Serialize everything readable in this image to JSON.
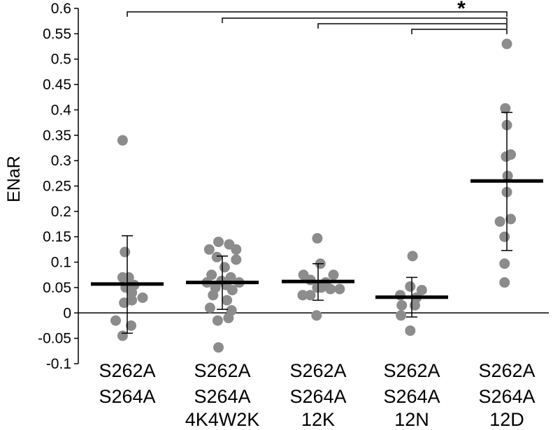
{
  "chart_data": {
    "type": "scatter",
    "title": "",
    "ylabel": "ENaR",
    "xlabel": "",
    "ylim": [
      -0.1,
      0.6
    ],
    "yticks": [
      "0.6",
      "0.55",
      "0.5",
      "0.45",
      "0.4",
      "0.35",
      "0.3",
      "0.25",
      "0.2",
      "0.15",
      "0.1",
      "0.05",
      "0",
      "-0.05",
      "-0.1"
    ],
    "ytick_values": [
      0.6,
      0.55,
      0.5,
      0.45,
      0.4,
      0.35,
      0.3,
      0.25,
      0.2,
      0.15,
      0.1,
      0.05,
      0,
      -0.05,
      -0.1
    ],
    "grid": false,
    "categories": [
      {
        "lines": [
          "S262A",
          "S264A"
        ]
      },
      {
        "lines": [
          "S262A",
          "S264A",
          "4K4W2K"
        ]
      },
      {
        "lines": [
          "S262A",
          "S264A",
          "12K"
        ]
      },
      {
        "lines": [
          "S262A",
          "S264A",
          "12N"
        ]
      },
      {
        "lines": [
          "S262A",
          "S264A",
          "12D"
        ]
      }
    ],
    "groups": [
      {
        "points": [
          [
            -0.06,
            0.34
          ],
          [
            -0.03,
            0.12
          ],
          [
            -0.06,
            0.07
          ],
          [
            0.02,
            0.07
          ],
          [
            0.09,
            0.055
          ],
          [
            -0.02,
            0.05
          ],
          [
            0.06,
            0.04
          ],
          [
            0.2,
            0.03
          ],
          [
            0.06,
            0.025
          ],
          [
            -0.04,
            0.02
          ],
          [
            -0.15,
            -0.015
          ],
          [
            0.05,
            -0.025
          ],
          [
            -0.06,
            -0.045
          ]
        ],
        "mean": 0.057,
        "sd_upper": 0.152,
        "sd_lower": -0.04
      },
      {
        "points": [
          [
            -0.05,
            0.14
          ],
          [
            0.09,
            0.135
          ],
          [
            -0.17,
            0.125
          ],
          [
            0.18,
            0.125
          ],
          [
            -0.07,
            0.11
          ],
          [
            0.18,
            0.105
          ],
          [
            0.03,
            0.09
          ],
          [
            -0.14,
            0.075
          ],
          [
            0.11,
            0.07
          ],
          [
            -0.01,
            0.063
          ],
          [
            -0.2,
            0.06
          ],
          [
            0.22,
            0.06
          ],
          [
            0.05,
            0.055
          ],
          [
            -0.09,
            0.05
          ],
          [
            0.13,
            0.045
          ],
          [
            -0.12,
            0.035
          ],
          [
            0.06,
            0.025
          ],
          [
            -0.16,
            0.01
          ],
          [
            0.12,
            0.005
          ],
          [
            -0.06,
            -0.015
          ],
          [
            0.08,
            -0.01
          ],
          [
            -0.05,
            -0.068
          ]
        ],
        "mean": 0.06,
        "sd_upper": 0.112,
        "sd_lower": 0.007
      },
      {
        "points": [
          [
            -0.01,
            0.147
          ],
          [
            0.03,
            0.097
          ],
          [
            0.2,
            0.075
          ],
          [
            -0.19,
            0.075
          ],
          [
            -0.1,
            0.065
          ],
          [
            0.1,
            0.06
          ],
          [
            0.04,
            0.05
          ],
          [
            -0.01,
            0.05
          ],
          [
            0.28,
            0.047
          ],
          [
            0.16,
            0.047
          ],
          [
            -0.2,
            0.035
          ],
          [
            -0.1,
            0.035
          ],
          [
            -0.02,
            -0.005
          ]
        ],
        "mean": 0.062,
        "sd_upper": 0.097,
        "sd_lower": 0.025
      },
      {
        "points": [
          [
            0.01,
            0.112
          ],
          [
            -0.02,
            0.052
          ],
          [
            0.13,
            0.045
          ],
          [
            -0.15,
            0.035
          ],
          [
            0.06,
            0.03
          ],
          [
            -0.13,
            0.015
          ],
          [
            0.04,
            0.015
          ],
          [
            -0.14,
            -0.005
          ],
          [
            -0.02,
            -0.035
          ]
        ],
        "mean": 0.031,
        "sd_upper": 0.07,
        "sd_lower": -0.008
      },
      {
        "points": [
          [
            0.0,
            0.53
          ],
          [
            -0.02,
            0.403
          ],
          [
            0.0,
            0.37
          ],
          [
            0.05,
            0.312
          ],
          [
            -0.01,
            0.308
          ],
          [
            0.01,
            0.27
          ],
          [
            0.0,
            0.238
          ],
          [
            0.05,
            0.185
          ],
          [
            -0.09,
            0.18
          ],
          [
            -0.03,
            0.15
          ],
          [
            -0.03,
            0.097
          ],
          [
            -0.03,
            0.06
          ]
        ],
        "mean": 0.26,
        "sd_upper": 0.395,
        "sd_lower": 0.123
      }
    ],
    "comparisons": [
      {
        "from": 0,
        "to": 4
      },
      {
        "from": 1,
        "to": 4
      },
      {
        "from": 2,
        "to": 4
      },
      {
        "from": 3,
        "to": 4
      }
    ],
    "significance_label": "*",
    "point_color": "#8c8c8c"
  }
}
